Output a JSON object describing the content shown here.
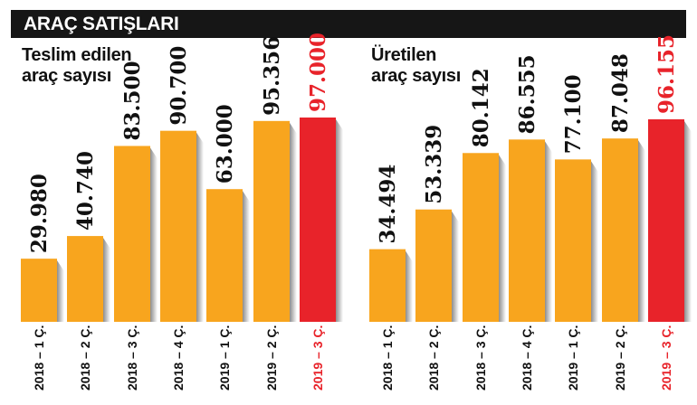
{
  "header": {
    "title": "ARAÇ SATIŞLARI"
  },
  "colors": {
    "bar": "#f8a51e",
    "highlight": "#e8232a",
    "header_bg": "#161616"
  },
  "chart_data": [
    {
      "type": "bar",
      "title_lines": [
        "Teslim edilen",
        "araç sayısı"
      ],
      "categories": [
        "2018 – 1 Ç.",
        "2018 – 2 Ç.",
        "2018 – 3 Ç.",
        "2018 – 4 Ç.",
        "2019 – 1 Ç.",
        "2019 – 2 Ç.",
        "2019 – 3 Ç."
      ],
      "values": [
        29980,
        40740,
        83500,
        90700,
        63000,
        95356,
        97000
      ],
      "labels": [
        "29.980",
        "40.740",
        "83.500",
        "90.700",
        "63.000",
        "95.356",
        "97.000"
      ],
      "highlight_index": 6
    },
    {
      "type": "bar",
      "title_lines": [
        "Üretilen",
        "araç sayısı"
      ],
      "categories": [
        "2018 – 1 Ç.",
        "2018 – 2 Ç.",
        "2018 – 3 Ç.",
        "2018 – 4 Ç.",
        "2019 – 1 Ç.",
        "2019 – 2 Ç.",
        "2019 – 3 Ç."
      ],
      "values": [
        34494,
        53339,
        80142,
        86555,
        77100,
        87048,
        96155
      ],
      "labels": [
        "34.494",
        "53.339",
        "80.142",
        "86.555",
        "77.100",
        "87.048",
        "96.155"
      ],
      "highlight_index": 6
    }
  ]
}
